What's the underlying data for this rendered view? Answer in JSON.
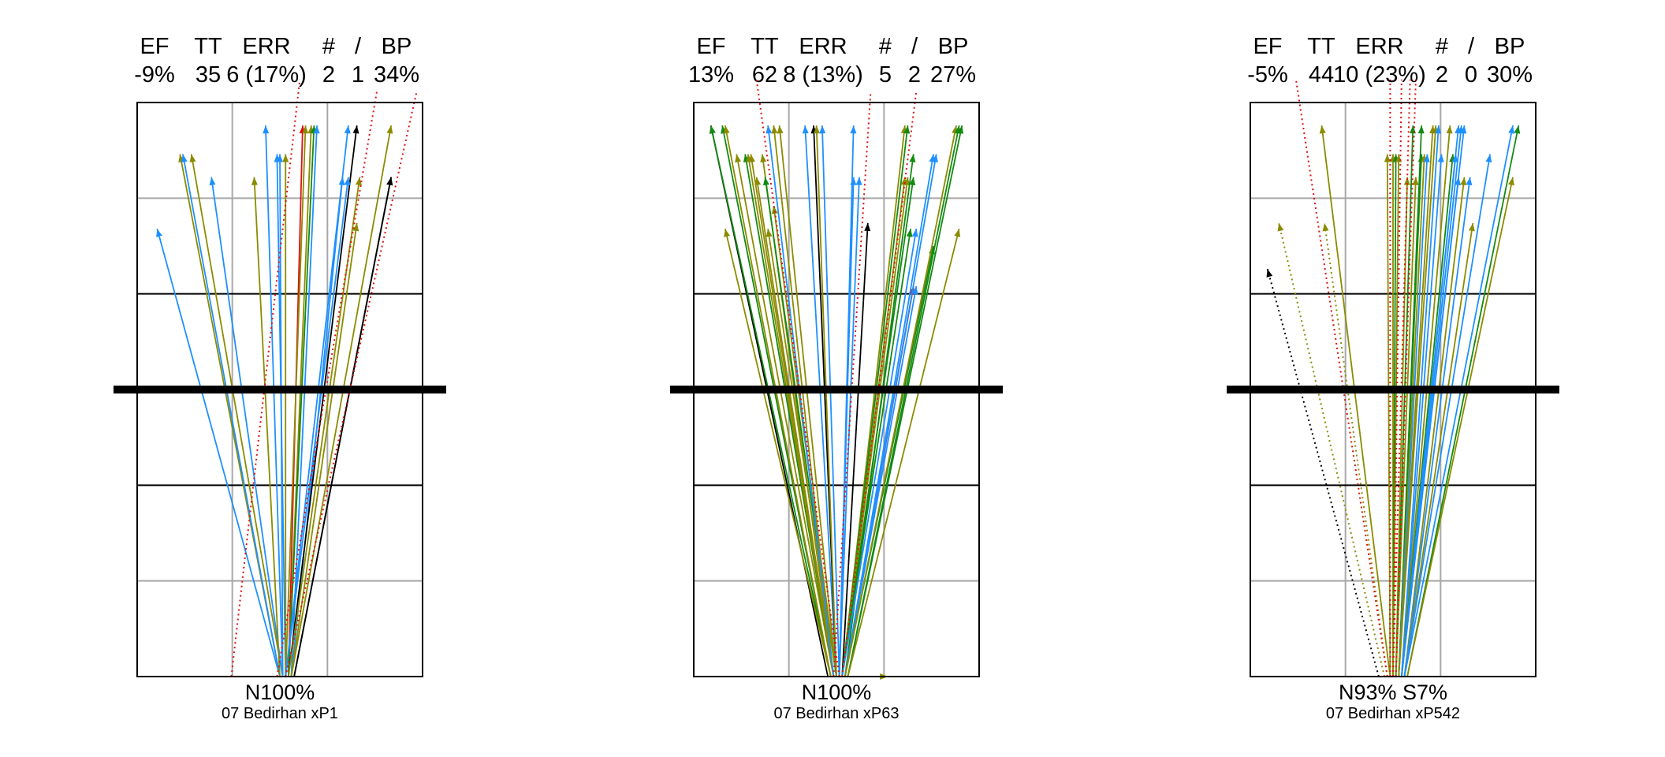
{
  "chart_data": [
    {
      "type": "arrow-diagram",
      "header_labels": [
        "EF",
        "TT",
        "ERR",
        "#",
        "/",
        "BP"
      ],
      "header_values": [
        "-9%",
        "35",
        "6 (17%)",
        "2",
        "1",
        "34%"
      ],
      "footer_line1": "N100%",
      "footer_line2": "07 Bedirhan  xP1",
      "arrows": [
        {
          "x1": 0.5,
          "x2": 0.07,
          "y2": 0.78,
          "c": "blue"
        },
        {
          "x1": 0.5,
          "x2": 0.15,
          "y2": 0.91,
          "c": "olive"
        },
        {
          "x1": 0.5,
          "x2": 0.16,
          "y2": 0.91,
          "c": "blue"
        },
        {
          "x1": 0.51,
          "x2": 0.19,
          "y2": 0.91,
          "c": "olive"
        },
        {
          "x1": 0.51,
          "x2": 0.26,
          "y2": 0.87,
          "c": "blue"
        },
        {
          "x1": 0.5,
          "x2": 0.41,
          "y2": 0.87,
          "c": "olive"
        },
        {
          "x1": 0.51,
          "x2": 0.45,
          "y2": 0.96,
          "c": "blue"
        },
        {
          "x1": 0.52,
          "x2": 0.49,
          "y2": 0.91,
          "c": "blue"
        },
        {
          "x1": 0.51,
          "x2": 0.5,
          "y2": 0.91,
          "c": "blue"
        },
        {
          "x1": 0.52,
          "x2": 0.52,
          "y2": 0.91,
          "c": "olive"
        },
        {
          "x1": 0.53,
          "x2": 0.58,
          "y2": 0.96,
          "c": "red"
        },
        {
          "x1": 0.52,
          "x2": 0.59,
          "y2": 0.96,
          "c": "olive"
        },
        {
          "x1": 0.53,
          "x2": 0.61,
          "y2": 0.96,
          "c": "olive"
        },
        {
          "x1": 0.53,
          "x2": 0.62,
          "y2": 0.96,
          "c": "green"
        },
        {
          "x1": 0.54,
          "x2": 0.63,
          "y2": 0.96,
          "c": "blue"
        },
        {
          "x1": 0.54,
          "x2": 0.72,
          "y2": 0.87,
          "c": "blue"
        },
        {
          "x1": 0.52,
          "x2": 0.74,
          "y2": 0.96,
          "c": "blue"
        },
        {
          "x1": 0.53,
          "x2": 0.77,
          "y2": 0.96,
          "c": "black"
        },
        {
          "x1": 0.52,
          "x2": 0.74,
          "y2": 0.87,
          "c": "blue"
        },
        {
          "x1": 0.53,
          "x2": 0.78,
          "y2": 0.87,
          "c": "olive"
        },
        {
          "x1": 0.54,
          "x2": 0.77,
          "y2": 0.79,
          "c": "olive"
        },
        {
          "x1": 0.54,
          "x2": 0.89,
          "y2": 0.96,
          "c": "olive"
        },
        {
          "x1": 0.55,
          "x2": 0.89,
          "y2": 0.87,
          "c": "black"
        },
        {
          "x1": 0.55,
          "x2": 0.89,
          "y2": 0.87,
          "c": "black"
        },
        {
          "x1": 0.33,
          "x2": 0.57,
          "y2": 1.04,
          "c": "red",
          "dotted": true
        },
        {
          "x1": 0.49,
          "x2": 0.84,
          "y2": 1.02,
          "c": "red",
          "dotted": true
        },
        {
          "x1": 0.52,
          "x2": 0.98,
          "y2": 1.02,
          "c": "red",
          "dotted": true
        }
      ]
    },
    {
      "type": "arrow-diagram",
      "header_labels": [
        "EF",
        "TT",
        "ERR",
        "#",
        "/",
        "BP"
      ],
      "header_values": [
        "13%",
        "62",
        "8 (13%)",
        "5",
        "2",
        "27%"
      ],
      "footer_line1": "N100%",
      "footer_line2": "07 Bedirhan  xP63",
      "arrows": [
        {
          "x1": 0.47,
          "x2": 0.06,
          "y2": 0.96,
          "c": "black"
        },
        {
          "x1": 0.48,
          "x2": 0.06,
          "y2": 0.96,
          "c": "green"
        },
        {
          "x1": 0.48,
          "x2": 0.1,
          "y2": 0.96,
          "c": "green"
        },
        {
          "x1": 0.48,
          "x2": 0.11,
          "y2": 0.96,
          "c": "olive"
        },
        {
          "x1": 0.48,
          "x2": 0.11,
          "y2": 0.78,
          "c": "olive"
        },
        {
          "x1": 0.49,
          "x2": 0.15,
          "y2": 0.91,
          "c": "olive"
        },
        {
          "x1": 0.49,
          "x2": 0.18,
          "y2": 0.91,
          "c": "green"
        },
        {
          "x1": 0.49,
          "x2": 0.19,
          "y2": 0.91,
          "c": "olive"
        },
        {
          "x1": 0.49,
          "x2": 0.2,
          "y2": 0.91,
          "c": "olive"
        },
        {
          "x1": 0.49,
          "x2": 0.22,
          "y2": 0.87,
          "c": "olive"
        },
        {
          "x1": 0.49,
          "x2": 0.24,
          "y2": 0.91,
          "c": "olive"
        },
        {
          "x1": 0.5,
          "x2": 0.25,
          "y2": 0.87,
          "c": "green"
        },
        {
          "x1": 0.5,
          "x2": 0.26,
          "y2": 0.78,
          "c": "olive"
        },
        {
          "x1": 0.5,
          "x2": 0.28,
          "y2": 0.82,
          "c": "olive"
        },
        {
          "x1": 0.49,
          "x2": 0.28,
          "y2": 0.96,
          "c": "olive"
        },
        {
          "x1": 0.49,
          "x2": 0.26,
          "y2": 0.96,
          "c": "blue"
        },
        {
          "x1": 0.5,
          "x2": 0.3,
          "y2": 0.96,
          "c": "olive"
        },
        {
          "x1": 0.5,
          "x2": 0.39,
          "y2": 0.96,
          "c": "blue"
        },
        {
          "x1": 0.5,
          "x2": 0.42,
          "y2": 0.96,
          "c": "black"
        },
        {
          "x1": 0.5,
          "x2": 0.43,
          "y2": 0.96,
          "c": "olive"
        },
        {
          "x1": 0.51,
          "x2": 0.45,
          "y2": 0.96,
          "c": "blue"
        },
        {
          "x1": 0.51,
          "x2": 0.56,
          "y2": 0.96,
          "c": "blue"
        },
        {
          "x1": 0.51,
          "x2": 0.56,
          "y2": 0.87,
          "c": "blue"
        },
        {
          "x1": 0.51,
          "x2": 0.58,
          "y2": 0.87,
          "c": "blue"
        },
        {
          "x1": 0.52,
          "x2": 0.61,
          "y2": 0.79,
          "c": "black"
        },
        {
          "x1": 0.52,
          "x2": 0.74,
          "y2": 0.96,
          "c": "olive"
        },
        {
          "x1": 0.52,
          "x2": 0.75,
          "y2": 0.96,
          "c": "green"
        },
        {
          "x1": 0.52,
          "x2": 0.74,
          "y2": 0.87,
          "c": "olive"
        },
        {
          "x1": 0.52,
          "x2": 0.75,
          "y2": 0.87,
          "c": "olive"
        },
        {
          "x1": 0.52,
          "x2": 0.77,
          "y2": 0.87,
          "c": "green"
        },
        {
          "x1": 0.53,
          "x2": 0.77,
          "y2": 0.91,
          "c": "green"
        },
        {
          "x1": 0.52,
          "x2": 0.76,
          "y2": 0.78,
          "c": "green"
        },
        {
          "x1": 0.53,
          "x2": 0.77,
          "y2": 0.68,
          "c": "red"
        },
        {
          "x1": 0.53,
          "x2": 0.78,
          "y2": 0.68,
          "c": "blue"
        },
        {
          "x1": 0.52,
          "x2": 0.78,
          "y2": 0.78,
          "c": "blue"
        },
        {
          "x1": 0.53,
          "x2": 0.84,
          "y2": 0.91,
          "c": "blue"
        },
        {
          "x1": 0.53,
          "x2": 0.85,
          "y2": 0.91,
          "c": "blue"
        },
        {
          "x1": 0.53,
          "x2": 0.84,
          "y2": 0.75,
          "c": "green"
        },
        {
          "x1": 0.53,
          "x2": 0.92,
          "y2": 0.96,
          "c": "olive"
        },
        {
          "x1": 0.54,
          "x2": 0.93,
          "y2": 0.96,
          "c": "green"
        },
        {
          "x1": 0.54,
          "x2": 0.94,
          "y2": 0.96,
          "c": "green"
        },
        {
          "x1": 0.54,
          "x2": 0.93,
          "y2": 0.78,
          "c": "olive"
        },
        {
          "x1": 0.48,
          "x2": 0.68,
          "y2": 0.0,
          "c": "olive"
        },
        {
          "x1": 0.51,
          "x2": 0.22,
          "y2": 1.04,
          "c": "red",
          "dotted": true
        },
        {
          "x1": 0.49,
          "x2": 0.62,
          "y2": 1.02,
          "c": "red",
          "dotted": true
        },
        {
          "x1": 0.52,
          "x2": 0.78,
          "y2": 1.02,
          "c": "red",
          "dotted": true
        }
      ]
    },
    {
      "type": "arrow-diagram",
      "header_labels": [
        "EF",
        "TT",
        "ERR",
        "#",
        "/",
        "BP"
      ],
      "header_values": [
        "-5%",
        "44",
        "10 (23%)",
        "2",
        "0",
        "30%"
      ],
      "footer_line1": "N93%  S7%",
      "footer_line2": "07 Bedirhan  xP542",
      "arrows": [
        {
          "x1": 0.45,
          "x2": 0.06,
          "y2": 0.71,
          "c": "black",
          "dotted": true
        },
        {
          "x1": 0.47,
          "x2": 0.1,
          "y2": 0.79,
          "c": "olive",
          "dotted": true
        },
        {
          "x1": 0.48,
          "x2": 0.26,
          "y2": 0.79,
          "c": "olive",
          "dotted": true
        },
        {
          "x1": 0.49,
          "x2": 0.25,
          "y2": 0.96,
          "c": "olive"
        },
        {
          "x1": 0.49,
          "x2": 0.48,
          "y2": 0.91,
          "c": "olive"
        },
        {
          "x1": 0.5,
          "x2": 0.5,
          "y2": 0.91,
          "c": "olive"
        },
        {
          "x1": 0.5,
          "x2": 0.51,
          "y2": 0.91,
          "c": "green"
        },
        {
          "x1": 0.5,
          "x2": 0.52,
          "y2": 0.91,
          "c": "olive"
        },
        {
          "x1": 0.51,
          "x2": 0.55,
          "y2": 0.87,
          "c": "olive"
        },
        {
          "x1": 0.51,
          "x2": 0.57,
          "y2": 0.96,
          "c": "green"
        },
        {
          "x1": 0.51,
          "x2": 0.58,
          "y2": 0.87,
          "c": "olive"
        },
        {
          "x1": 0.52,
          "x2": 0.6,
          "y2": 0.96,
          "c": "green"
        },
        {
          "x1": 0.52,
          "x2": 0.6,
          "y2": 0.91,
          "c": "green"
        },
        {
          "x1": 0.52,
          "x2": 0.61,
          "y2": 0.91,
          "c": "olive"
        },
        {
          "x1": 0.52,
          "x2": 0.62,
          "y2": 0.91,
          "c": "blue"
        },
        {
          "x1": 0.52,
          "x2": 0.64,
          "y2": 0.96,
          "c": "olive"
        },
        {
          "x1": 0.52,
          "x2": 0.65,
          "y2": 0.96,
          "c": "olive"
        },
        {
          "x1": 0.53,
          "x2": 0.66,
          "y2": 0.96,
          "c": "blue"
        },
        {
          "x1": 0.53,
          "x2": 0.67,
          "y2": 0.91,
          "c": "blue"
        },
        {
          "x1": 0.53,
          "x2": 0.7,
          "y2": 0.96,
          "c": "olive"
        },
        {
          "x1": 0.53,
          "x2": 0.71,
          "y2": 0.91,
          "c": "green"
        },
        {
          "x1": 0.53,
          "x2": 0.72,
          "y2": 0.91,
          "c": "blue"
        },
        {
          "x1": 0.53,
          "x2": 0.73,
          "y2": 0.96,
          "c": "blue"
        },
        {
          "x1": 0.53,
          "x2": 0.74,
          "y2": 0.96,
          "c": "blue"
        },
        {
          "x1": 0.53,
          "x2": 0.75,
          "y2": 0.96,
          "c": "blue"
        },
        {
          "x1": 0.53,
          "x2": 0.73,
          "y2": 0.87,
          "c": "blue"
        },
        {
          "x1": 0.54,
          "x2": 0.75,
          "y2": 0.87,
          "c": "olive"
        },
        {
          "x1": 0.54,
          "x2": 0.77,
          "y2": 0.87,
          "c": "blue"
        },
        {
          "x1": 0.54,
          "x2": 0.78,
          "y2": 0.79,
          "c": "olive"
        },
        {
          "x1": 0.54,
          "x2": 0.84,
          "y2": 0.91,
          "c": "blue"
        },
        {
          "x1": 0.54,
          "x2": 0.92,
          "y2": 0.96,
          "c": "blue"
        },
        {
          "x1": 0.55,
          "x2": 0.94,
          "y2": 0.96,
          "c": "green"
        },
        {
          "x1": 0.55,
          "x2": 0.92,
          "y2": 0.87,
          "c": "olive"
        },
        {
          "x1": 0.48,
          "x2": 0.16,
          "y2": 1.04,
          "c": "red",
          "dotted": true
        },
        {
          "x1": 0.49,
          "x2": 0.49,
          "y2": 1.04,
          "c": "red",
          "dotted": true
        },
        {
          "x1": 0.5,
          "x2": 0.53,
          "y2": 1.04,
          "c": "red",
          "dotted": true
        },
        {
          "x1": 0.5,
          "x2": 0.56,
          "y2": 1.04,
          "c": "red",
          "dotted": true
        },
        {
          "x1": 0.51,
          "x2": 0.58,
          "y2": 1.04,
          "c": "red",
          "dotted": true
        }
      ]
    }
  ],
  "colors": {
    "blue": "#1e90ff",
    "olive": "#8b8b00",
    "green": "#138a13",
    "red": "#e01010",
    "black": "#000000",
    "grid_light": "#a8a8a8",
    "grid_dark": "#000000",
    "midline": "#000000"
  }
}
